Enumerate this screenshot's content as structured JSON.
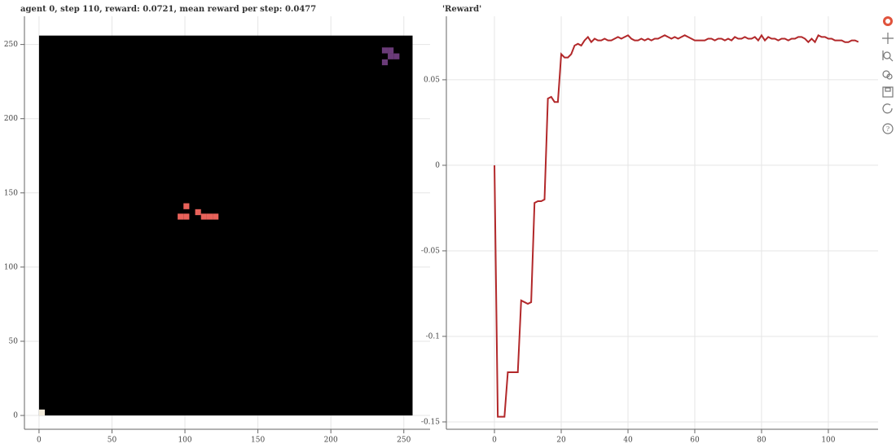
{
  "chart_data": [
    {
      "type": "image",
      "title": "agent 0, step 110, reward: 0.0721, mean reward per step: 0.0477",
      "xlim": [
        -10,
        268
      ],
      "ylim": [
        -9.3,
        269
      ],
      "xticks": [
        0,
        50,
        100,
        150,
        200,
        250
      ],
      "yticks": [
        0,
        50,
        100,
        150,
        200,
        250
      ],
      "grid": true,
      "background": {
        "x": [
          0,
          256
        ],
        "y": [
          0,
          256
        ],
        "color": "#000000"
      },
      "cell_size": 4,
      "cells": [
        {
          "x": 0,
          "y": 0,
          "color": "#f3ecdc"
        },
        {
          "x": 99,
          "y": 139,
          "color": "#e8625a"
        },
        {
          "x": 107,
          "y": 135,
          "color": "#e8625a"
        },
        {
          "x": 95,
          "y": 132,
          "color": "#e8625a"
        },
        {
          "x": 99,
          "y": 132,
          "color": "#e8625a"
        },
        {
          "x": 111,
          "y": 132,
          "color": "#e8625a"
        },
        {
          "x": 115,
          "y": 132,
          "color": "#e8625a"
        },
        {
          "x": 119,
          "y": 132,
          "color": "#e8625a"
        },
        {
          "x": 235,
          "y": 244,
          "color": "#6a3b78"
        },
        {
          "x": 239,
          "y": 244,
          "color": "#6a3b78"
        },
        {
          "x": 239,
          "y": 240,
          "color": "#6a3b78"
        },
        {
          "x": 243,
          "y": 240,
          "color": "#6a3b78"
        },
        {
          "x": 235,
          "y": 236,
          "color": "#6a3b78"
        }
      ]
    },
    {
      "type": "line",
      "title": "'Reward'",
      "xlim": [
        -14.4,
        114.9
      ],
      "ylim": [
        -0.1543,
        0.0871
      ],
      "xticks": [
        0,
        20,
        40,
        60,
        80,
        100
      ],
      "yticks": [
        -0.15,
        -0.1,
        -0.05,
        0,
        0.05
      ],
      "grid": true,
      "x": [
        0,
        1,
        2,
        3,
        4,
        5,
        6,
        7,
        8,
        9,
        10,
        11,
        12,
        13,
        14,
        15,
        16,
        17,
        18,
        19,
        20,
        21,
        22,
        23,
        24,
        25,
        26,
        27,
        28,
        29,
        30,
        31,
        32,
        33,
        34,
        35,
        36,
        37,
        38,
        39,
        40,
        41,
        42,
        43,
        44,
        45,
        46,
        47,
        48,
        49,
        50,
        51,
        52,
        53,
        54,
        55,
        56,
        57,
        58,
        59,
        60,
        61,
        62,
        63,
        64,
        65,
        66,
        67,
        68,
        69,
        70,
        71,
        72,
        73,
        74,
        75,
        76,
        77,
        78,
        79,
        80,
        81,
        82,
        83,
        84,
        85,
        86,
        87,
        88,
        89,
        90,
        91,
        92,
        93,
        94,
        95,
        96,
        97,
        98,
        99,
        100,
        101,
        102,
        103,
        104,
        105,
        106,
        107,
        108,
        109
      ],
      "series": [
        {
          "color": "#b2282a",
          "values": [
            0,
            -0.147,
            -0.147,
            -0.147,
            -0.121,
            -0.121,
            -0.121,
            -0.121,
            -0.079,
            -0.08,
            -0.081,
            -0.08,
            -0.022,
            -0.021,
            -0.021,
            -0.02,
            0.039,
            0.04,
            0.037,
            0.037,
            0.065,
            0.063,
            0.063,
            0.065,
            0.07,
            0.071,
            0.07,
            0.073,
            0.075,
            0.072,
            0.074,
            0.073,
            0.073,
            0.074,
            0.073,
            0.073,
            0.074,
            0.075,
            0.074,
            0.075,
            0.076,
            0.074,
            0.073,
            0.073,
            0.074,
            0.073,
            0.074,
            0.073,
            0.074,
            0.074,
            0.075,
            0.076,
            0.075,
            0.074,
            0.075,
            0.074,
            0.075,
            0.076,
            0.075,
            0.074,
            0.073,
            0.073,
            0.073,
            0.073,
            0.074,
            0.074,
            0.073,
            0.074,
            0.074,
            0.073,
            0.074,
            0.073,
            0.075,
            0.074,
            0.074,
            0.075,
            0.074,
            0.074,
            0.075,
            0.073,
            0.076,
            0.073,
            0.075,
            0.074,
            0.074,
            0.073,
            0.074,
            0.074,
            0.073,
            0.074,
            0.074,
            0.075,
            0.075,
            0.074,
            0.072,
            0.074,
            0.072,
            0.076,
            0.075,
            0.075,
            0.074,
            0.074,
            0.073,
            0.073,
            0.073,
            0.072,
            0.072,
            0.073,
            0.073,
            0.0721
          ]
        }
      ]
    }
  ]
}
